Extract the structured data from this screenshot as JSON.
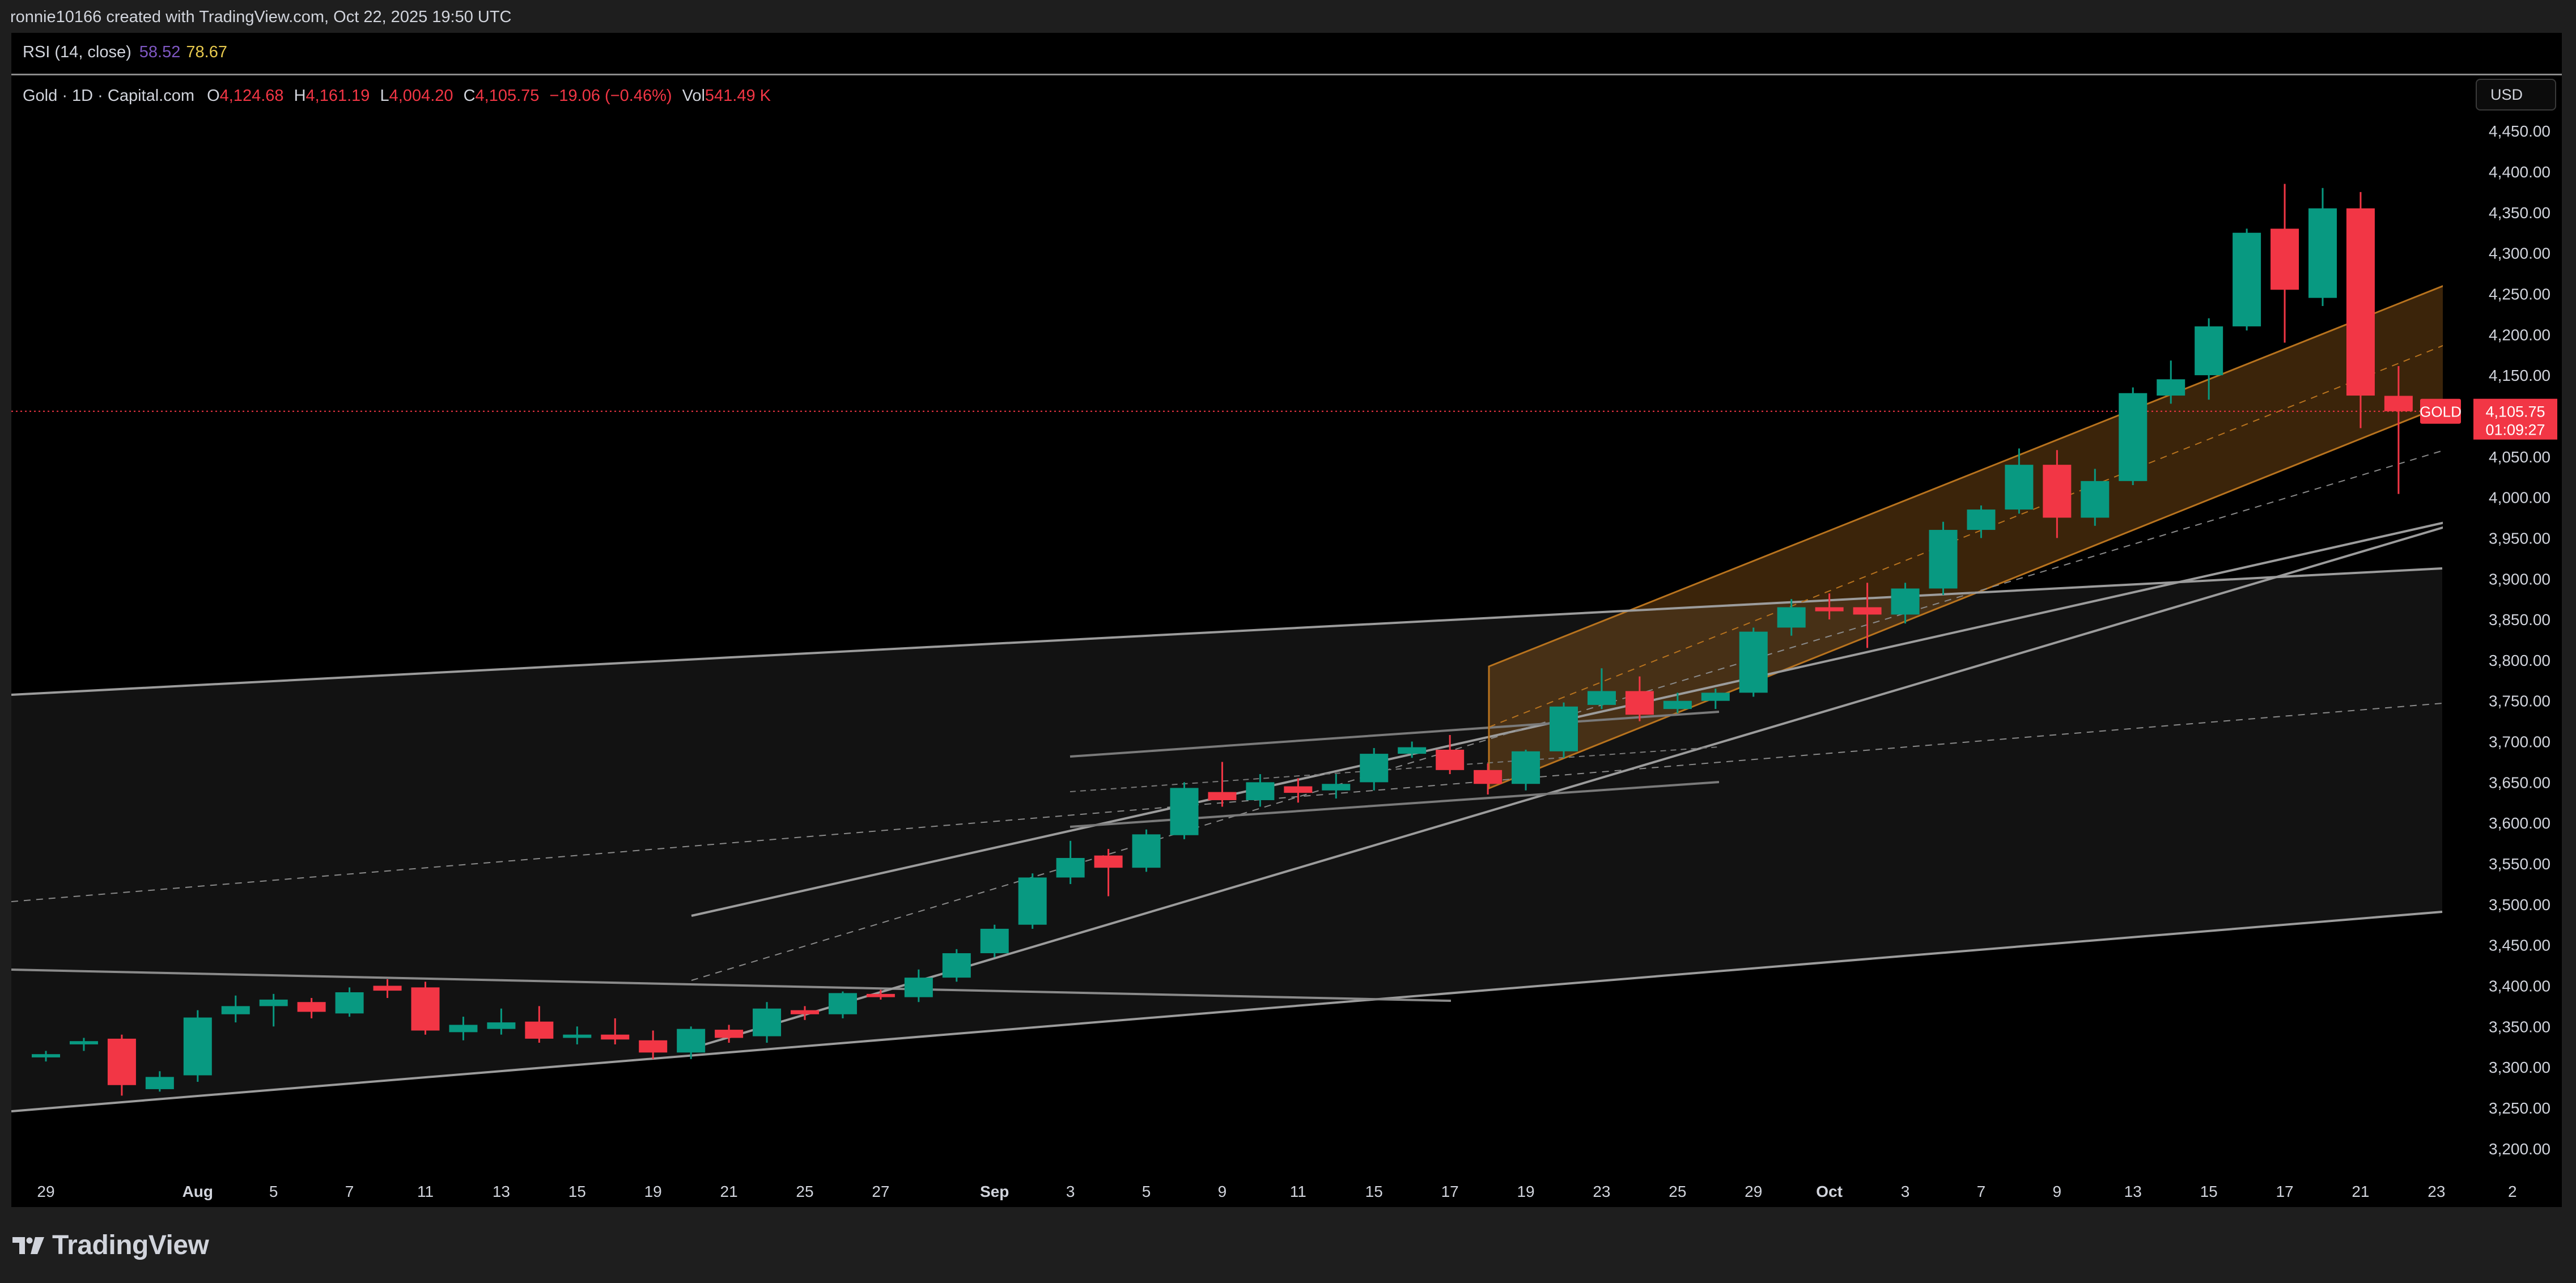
{
  "header": {
    "caption": "ronnie10166 created with TradingView.com, Oct 22, 2025 19:50 UTC"
  },
  "rsi": {
    "label": "RSI (14, close)",
    "value1": "58.52",
    "value2": "78.67",
    "value1_color": "#7e57c2",
    "value2_color": "#e6c84d"
  },
  "legend": {
    "symbol": "Gold · 1D · Capital.com",
    "o_key": "O",
    "o_val": "4,124.68",
    "h_key": "H",
    "h_val": "4,161.19",
    "l_key": "L",
    "l_val": "4,004.20",
    "c_key": "C",
    "c_val": "4,105.75",
    "change": "−19.06 (−0.46%)",
    "vol_key": "Vol",
    "vol_val": "541.49 K"
  },
  "currency_button": "USD",
  "price_label": {
    "name": "GOLD",
    "price": "4,105.75",
    "countdown": "01:09:27",
    "color": "#f23645"
  },
  "branding": {
    "name": "TradingView",
    "logo_icon": "tradingview-logo-icon"
  },
  "colors": {
    "up": "#089981",
    "down": "#f23645",
    "background": "#000000",
    "channel_fill": "#b87020"
  },
  "chart_data": {
    "type": "candlestick",
    "ylim": [
      3170,
      4460
    ],
    "y_ticks": [
      "3,200.00",
      "3,250.00",
      "3,300.00",
      "3,350.00",
      "3,400.00",
      "3,450.00",
      "3,500.00",
      "3,550.00",
      "3,600.00",
      "3,650.00",
      "3,700.00",
      "3,750.00",
      "3,800.00",
      "3,850.00",
      "3,900.00",
      "3,950.00",
      "4,000.00",
      "4,050.00",
      "4,100.00",
      "4,150.00",
      "4,200.00",
      "4,250.00",
      "4,300.00",
      "4,350.00",
      "4,400.00",
      "4,450.00"
    ],
    "x_ticks": [
      {
        "label": "29",
        "i": 0
      },
      {
        "label": "Aug",
        "i": 4,
        "bold": true
      },
      {
        "label": "5",
        "i": 6
      },
      {
        "label": "7",
        "i": 8
      },
      {
        "label": "11",
        "i": 10
      },
      {
        "label": "13",
        "i": 12
      },
      {
        "label": "15",
        "i": 14
      },
      {
        "label": "19",
        "i": 16
      },
      {
        "label": "21",
        "i": 18
      },
      {
        "label": "25",
        "i": 20
      },
      {
        "label": "27",
        "i": 22
      },
      {
        "label": "Sep",
        "i": 25,
        "bold": true
      },
      {
        "label": "3",
        "i": 27
      },
      {
        "label": "5",
        "i": 29
      },
      {
        "label": "9",
        "i": 31
      },
      {
        "label": "11",
        "i": 33
      },
      {
        "label": "15",
        "i": 35
      },
      {
        "label": "17",
        "i": 37
      },
      {
        "label": "19",
        "i": 39
      },
      {
        "label": "23",
        "i": 41
      },
      {
        "label": "25",
        "i": 43
      },
      {
        "label": "29",
        "i": 45
      },
      {
        "label": "Oct",
        "i": 47,
        "bold": true
      },
      {
        "label": "3",
        "i": 49
      },
      {
        "label": "7",
        "i": 51
      },
      {
        "label": "9",
        "i": 53
      },
      {
        "label": "13",
        "i": 55
      },
      {
        "label": "15",
        "i": 57
      },
      {
        "label": "17",
        "i": 59
      },
      {
        "label": "21",
        "i": 61
      },
      {
        "label": "23",
        "i": 63
      },
      {
        "label": "2",
        "i": 65
      }
    ],
    "candles": [
      [
        0,
        3312,
        3320,
        3307,
        3316
      ],
      [
        1,
        3328,
        3336,
        3320,
        3332
      ],
      [
        2,
        3335,
        3340,
        3265,
        3278
      ],
      [
        3,
        3273,
        3295,
        3270,
        3288
      ],
      [
        4,
        3290,
        3370,
        3282,
        3361
      ],
      [
        5,
        3365,
        3388,
        3355,
        3375
      ],
      [
        6,
        3375,
        3390,
        3350,
        3383
      ],
      [
        7,
        3380,
        3385,
        3360,
        3368
      ],
      [
        8,
        3366,
        3398,
        3362,
        3392
      ],
      [
        9,
        3400,
        3408,
        3385,
        3394
      ],
      [
        10,
        3398,
        3405,
        3340,
        3345
      ],
      [
        11,
        3343,
        3362,
        3333,
        3352
      ],
      [
        12,
        3347,
        3372,
        3340,
        3355
      ],
      [
        13,
        3356,
        3375,
        3330,
        3335
      ],
      [
        14,
        3336,
        3350,
        3328,
        3340
      ],
      [
        15,
        3340,
        3360,
        3328,
        3334
      ],
      [
        16,
        3333,
        3345,
        3310,
        3318
      ],
      [
        17,
        3318,
        3350,
        3310,
        3347
      ],
      [
        18,
        3346,
        3352,
        3330,
        3336
      ],
      [
        19,
        3338,
        3380,
        3330,
        3372
      ],
      [
        20,
        3370,
        3375,
        3358,
        3365
      ],
      [
        21,
        3365,
        3393,
        3360,
        3391
      ],
      [
        22,
        3390,
        3395,
        3383,
        3386
      ],
      [
        23,
        3386,
        3420,
        3380,
        3410
      ],
      [
        24,
        3410,
        3445,
        3405,
        3440
      ],
      [
        25,
        3440,
        3475,
        3435,
        3470
      ],
      [
        26,
        3475,
        3538,
        3470,
        3533
      ],
      [
        27,
        3533,
        3578,
        3525,
        3557
      ],
      [
        28,
        3560,
        3568,
        3510,
        3545
      ],
      [
        29,
        3545,
        3592,
        3540,
        3586
      ],
      [
        30,
        3585,
        3650,
        3580,
        3643
      ],
      [
        31,
        3638,
        3675,
        3620,
        3628
      ],
      [
        32,
        3628,
        3660,
        3620,
        3650
      ],
      [
        33,
        3645,
        3655,
        3625,
        3637
      ],
      [
        34,
        3640,
        3660,
        3630,
        3648
      ],
      [
        35,
        3650,
        3692,
        3640,
        3685
      ],
      [
        36,
        3685,
        3700,
        3680,
        3693
      ],
      [
        37,
        3690,
        3708,
        3660,
        3665
      ],
      [
        38,
        3665,
        3673,
        3635,
        3648
      ],
      [
        39,
        3648,
        3690,
        3640,
        3688
      ],
      [
        40,
        3688,
        3748,
        3680,
        3743
      ],
      [
        41,
        3745,
        3790,
        3740,
        3762
      ],
      [
        42,
        3762,
        3780,
        3725,
        3733
      ],
      [
        43,
        3740,
        3760,
        3735,
        3750
      ],
      [
        44,
        3750,
        3765,
        3740,
        3760
      ],
      [
        45,
        3760,
        3840,
        3755,
        3835
      ],
      [
        46,
        3840,
        3875,
        3830,
        3865
      ],
      [
        47,
        3865,
        3882,
        3850,
        3860
      ],
      [
        48,
        3865,
        3895,
        3815,
        3856
      ],
      [
        49,
        3856,
        3895,
        3845,
        3888
      ],
      [
        50,
        3888,
        3970,
        3880,
        3960
      ],
      [
        51,
        3960,
        3990,
        3950,
        3985
      ],
      [
        52,
        3985,
        4060,
        3980,
        4040
      ],
      [
        53,
        4040,
        4058,
        3950,
        3975
      ],
      [
        54,
        3975,
        4035,
        3965,
        4020
      ],
      [
        55,
        4020,
        4135,
        4015,
        4128
      ],
      [
        56,
        4125,
        4168,
        4115,
        4145
      ],
      [
        57,
        4150,
        4220,
        4120,
        4210
      ],
      [
        58,
        4210,
        4330,
        4205,
        4325
      ],
      [
        59,
        4330,
        4385,
        4190,
        4255
      ],
      [
        60,
        4245,
        4380,
        4235,
        4355
      ],
      [
        61,
        4355,
        4375,
        4085,
        4125
      ],
      [
        62,
        4124.68,
        4161.19,
        4004.2,
        4105.75
      ]
    ]
  }
}
